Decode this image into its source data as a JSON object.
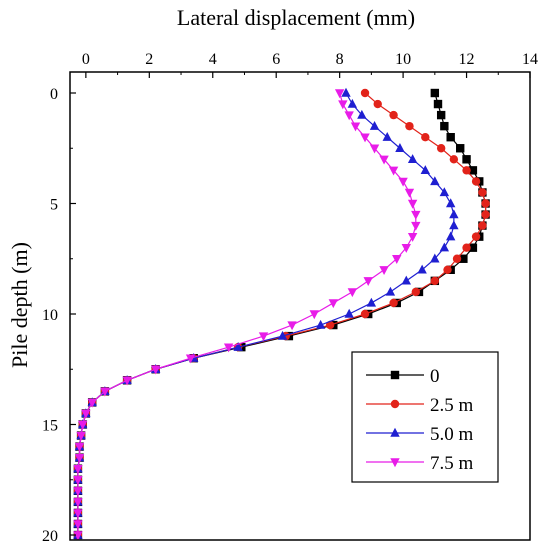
{
  "chart_data": {
    "type": "line",
    "xlabel": "Lateral displacement (mm)",
    "ylabel": "Pile depth (m)",
    "xlim": [
      -0.5,
      14
    ],
    "ylim": [
      0,
      20
    ],
    "y_inverted": true,
    "x_axis_position": "top",
    "xticks": [
      0,
      2,
      4,
      6,
      8,
      10,
      12,
      14
    ],
    "yticks": [
      0,
      5,
      10,
      15,
      20
    ],
    "grid": false,
    "legend_position": "bottom-right",
    "series": [
      {
        "name": "0",
        "color": "#000000",
        "marker": "square",
        "x": [
          11.0,
          11.1,
          11.2,
          11.3,
          11.5,
          11.8,
          12.0,
          12.2,
          12.4,
          12.5,
          12.6,
          12.6,
          12.5,
          12.4,
          12.2,
          11.9,
          11.5,
          11.0,
          10.5,
          9.8,
          8.9,
          7.8,
          6.4,
          4.9,
          3.4,
          2.2,
          1.3,
          0.6,
          0.2,
          0.0,
          -0.1,
          -0.15,
          -0.2,
          -0.2,
          -0.25,
          -0.25,
          -0.25,
          -0.25,
          -0.25,
          -0.25,
          -0.25
        ],
        "y": [
          0,
          0.5,
          1,
          1.5,
          2,
          2.5,
          3,
          3.5,
          4,
          4.5,
          5,
          5.5,
          6,
          6.5,
          7,
          7.5,
          8,
          8.5,
          9,
          9.5,
          10,
          10.5,
          11,
          11.5,
          12,
          12.5,
          13,
          13.5,
          14,
          14.5,
          15,
          15.5,
          16,
          16.5,
          17,
          17.5,
          18,
          18.5,
          19,
          19.5,
          20
        ]
      },
      {
        "name": "2.5 m",
        "color": "#e2231a",
        "marker": "circle",
        "x": [
          8.8,
          9.2,
          9.7,
          10.2,
          10.7,
          11.2,
          11.6,
          12.0,
          12.3,
          12.5,
          12.6,
          12.6,
          12.5,
          12.3,
          12.0,
          11.7,
          11.4,
          11.0,
          10.4,
          9.7,
          8.8,
          7.7,
          6.3,
          4.8,
          3.4,
          2.2,
          1.3,
          0.6,
          0.2,
          0.0,
          -0.1,
          -0.15,
          -0.2,
          -0.2,
          -0.25,
          -0.25,
          -0.25,
          -0.25,
          -0.25,
          -0.25,
          -0.25
        ],
        "y": [
          0,
          0.5,
          1,
          1.5,
          2,
          2.5,
          3,
          3.5,
          4,
          4.5,
          5,
          5.5,
          6,
          6.5,
          7,
          7.5,
          8,
          8.5,
          9,
          9.5,
          10,
          10.5,
          11,
          11.5,
          12,
          12.5,
          13,
          13.5,
          14,
          14.5,
          15,
          15.5,
          16,
          16.5,
          17,
          17.5,
          18,
          18.5,
          19,
          19.5,
          20
        ]
      },
      {
        "name": "5.0 m",
        "color": "#1f1fd1",
        "marker": "triangle-up",
        "x": [
          8.2,
          8.4,
          8.7,
          9.1,
          9.5,
          9.9,
          10.3,
          10.7,
          11.0,
          11.3,
          11.5,
          11.6,
          11.6,
          11.5,
          11.3,
          11.0,
          10.6,
          10.1,
          9.6,
          9.0,
          8.3,
          7.4,
          6.2,
          4.8,
          3.4,
          2.2,
          1.3,
          0.6,
          0.2,
          0.0,
          -0.1,
          -0.15,
          -0.2,
          -0.2,
          -0.25,
          -0.25,
          -0.25,
          -0.25,
          -0.25,
          -0.25,
          -0.25
        ],
        "y": [
          0,
          0.5,
          1,
          1.5,
          2,
          2.5,
          3,
          3.5,
          4,
          4.5,
          5,
          5.5,
          6,
          6.5,
          7,
          7.5,
          8,
          8.5,
          9,
          9.5,
          10,
          10.5,
          11,
          11.5,
          12,
          12.5,
          13,
          13.5,
          14,
          14.5,
          15,
          15.5,
          16,
          16.5,
          17,
          17.5,
          18,
          18.5,
          19,
          19.5,
          20
        ]
      },
      {
        "name": "7.5 m",
        "color": "#e81ce8",
        "marker": "triangle-down",
        "x": [
          8.0,
          8.1,
          8.3,
          8.5,
          8.8,
          9.1,
          9.4,
          9.7,
          10.0,
          10.2,
          10.3,
          10.4,
          10.4,
          10.3,
          10.1,
          9.8,
          9.4,
          8.9,
          8.4,
          7.8,
          7.2,
          6.5,
          5.6,
          4.5,
          3.3,
          2.2,
          1.3,
          0.6,
          0.2,
          0.0,
          -0.1,
          -0.15,
          -0.2,
          -0.2,
          -0.25,
          -0.25,
          -0.25,
          -0.25,
          -0.25,
          -0.25,
          -0.25
        ],
        "y": [
          0,
          0.5,
          1,
          1.5,
          2,
          2.5,
          3,
          3.5,
          4,
          4.5,
          5,
          5.5,
          6,
          6.5,
          7,
          7.5,
          8,
          8.5,
          9,
          9.5,
          10,
          10.5,
          11,
          11.5,
          12,
          12.5,
          13,
          13.5,
          14,
          14.5,
          15,
          15.5,
          16,
          16.5,
          17,
          17.5,
          18,
          18.5,
          19,
          19.5,
          20
        ]
      }
    ]
  }
}
